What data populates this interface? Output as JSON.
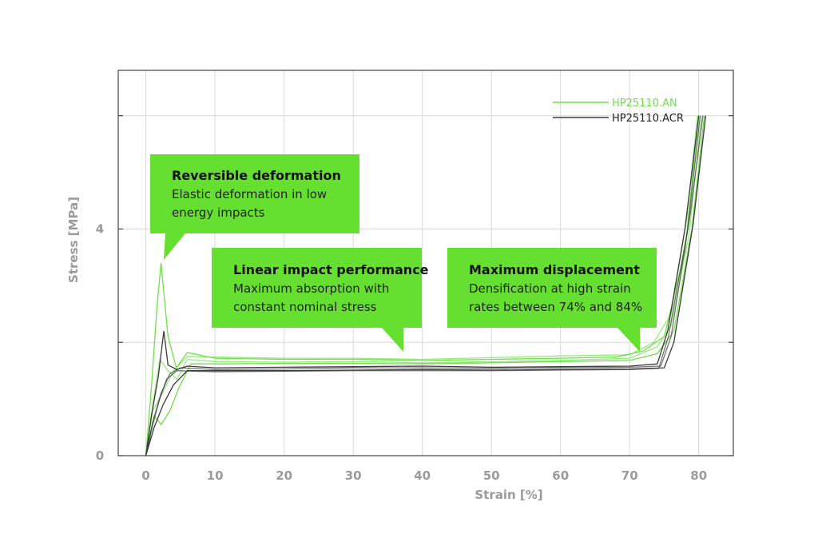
{
  "chart_data": {
    "type": "line",
    "xlabel": "Strain [%]",
    "ylabel": "Stress [MPa]",
    "xlim": [
      -4,
      85
    ],
    "ylim": [
      0,
      6.8
    ],
    "x_ticks": [
      0,
      10,
      20,
      30,
      40,
      50,
      60,
      70,
      80
    ],
    "y_ticks": [
      0,
      4
    ],
    "y_tick_labels": [
      "0",
      "4"
    ],
    "grid": true,
    "legend_position": "top-right",
    "colors": {
      "green": "#6fe04a",
      "black": "#3a3a3a",
      "callout": "#66e030"
    },
    "series": [
      {
        "name": "HP25110.AN",
        "color": "#6fe04a",
        "curves": [
          [
            [
              0,
              0
            ],
            [
              0.8,
              1.2
            ],
            [
              1.6,
              2.6
            ],
            [
              2.2,
              3.4
            ],
            [
              3.2,
              2.1
            ],
            [
              4.4,
              1.55
            ],
            [
              6,
              1.82
            ],
            [
              10,
              1.72
            ],
            [
              20,
              1.7
            ],
            [
              30,
              1.7
            ],
            [
              40,
              1.68
            ],
            [
              50,
              1.7
            ],
            [
              60,
              1.72
            ],
            [
              68,
              1.74
            ],
            [
              72,
              1.85
            ],
            [
              75,
              2.1
            ],
            [
              78,
              3.6
            ],
            [
              80,
              6.0
            ]
          ],
          [
            [
              0,
              0
            ],
            [
              1,
              0.9
            ],
            [
              2,
              1.7
            ],
            [
              3.2,
              1.5
            ],
            [
              4.5,
              1.35
            ],
            [
              6,
              1.7
            ],
            [
              10,
              1.66
            ],
            [
              20,
              1.65
            ],
            [
              30,
              1.66
            ],
            [
              40,
              1.64
            ],
            [
              50,
              1.66
            ],
            [
              60,
              1.68
            ],
            [
              70,
              1.72
            ],
            [
              74,
              1.92
            ],
            [
              76,
              2.3
            ],
            [
              78.6,
              3.9
            ],
            [
              80.4,
              6.0
            ]
          ],
          [
            [
              0,
              0
            ],
            [
              1.2,
              0.7
            ],
            [
              2.2,
              0.55
            ],
            [
              3.5,
              0.8
            ],
            [
              4.8,
              1.2
            ],
            [
              6.5,
              1.62
            ],
            [
              10,
              1.62
            ],
            [
              20,
              1.63
            ],
            [
              30,
              1.63
            ],
            [
              40,
              1.62
            ],
            [
              50,
              1.64
            ],
            [
              60,
              1.66
            ],
            [
              70,
              1.68
            ],
            [
              74,
              1.8
            ],
            [
              76.4,
              2.2
            ],
            [
              79,
              4.0
            ],
            [
              80.8,
              6.0
            ]
          ],
          [
            [
              0,
              0
            ],
            [
              1,
              0.8
            ],
            [
              2.4,
              1.1
            ],
            [
              4,
              1.5
            ],
            [
              6,
              1.75
            ],
            [
              10,
              1.74
            ],
            [
              20,
              1.72
            ],
            [
              30,
              1.72
            ],
            [
              40,
              1.7
            ],
            [
              50,
              1.73
            ],
            [
              60,
              1.76
            ],
            [
              70,
              1.78
            ],
            [
              73.5,
              2.0
            ],
            [
              76,
              2.5
            ],
            [
              78.3,
              4.2
            ],
            [
              79.8,
              6.0
            ]
          ]
        ]
      },
      {
        "name": "HP25110.ACR",
        "color": "#3a3a3a",
        "curves": [
          [
            [
              0,
              0
            ],
            [
              0.8,
              0.7
            ],
            [
              1.8,
              1.4
            ],
            [
              2.6,
              2.2
            ],
            [
              3.2,
              1.6
            ],
            [
              4.5,
              1.52
            ],
            [
              6,
              1.58
            ],
            [
              10,
              1.55
            ],
            [
              20,
              1.56
            ],
            [
              30,
              1.57
            ],
            [
              40,
              1.58
            ],
            [
              50,
              1.56
            ],
            [
              60,
              1.57
            ],
            [
              70,
              1.58
            ],
            [
              74,
              1.62
            ],
            [
              75.5,
              2.2
            ],
            [
              78,
              4.0
            ],
            [
              80,
              6.0
            ]
          ],
          [
            [
              0,
              0
            ],
            [
              1,
              0.6
            ],
            [
              2.2,
              1.1
            ],
            [
              3.5,
              1.45
            ],
            [
              5,
              1.55
            ],
            [
              10,
              1.52
            ],
            [
              20,
              1.53
            ],
            [
              30,
              1.55
            ],
            [
              40,
              1.55
            ],
            [
              50,
              1.54
            ],
            [
              60,
              1.55
            ],
            [
              70,
              1.56
            ],
            [
              74.5,
              1.58
            ],
            [
              76,
              2.1
            ],
            [
              78.8,
              4.3
            ],
            [
              80.6,
              6.0
            ]
          ],
          [
            [
              0,
              0
            ],
            [
              1.2,
              0.5
            ],
            [
              2.5,
              0.9
            ],
            [
              4,
              1.25
            ],
            [
              6,
              1.5
            ],
            [
              10,
              1.5
            ],
            [
              20,
              1.5
            ],
            [
              30,
              1.51
            ],
            [
              40,
              1.52
            ],
            [
              50,
              1.51
            ],
            [
              60,
              1.52
            ],
            [
              70,
              1.53
            ],
            [
              75,
              1.55
            ],
            [
              76.4,
              2.0
            ],
            [
              79.2,
              4.1
            ],
            [
              81,
              6.0
            ]
          ],
          [
            [
              0,
              0
            ],
            [
              1,
              0.55
            ],
            [
              2,
              1.0
            ],
            [
              3,
              1.35
            ],
            [
              4.5,
              1.5
            ],
            [
              10,
              1.48
            ],
            [
              20,
              1.49
            ],
            [
              30,
              1.5
            ],
            [
              40,
              1.5
            ],
            [
              50,
              1.5
            ],
            [
              60,
              1.51
            ],
            [
              70,
              1.52
            ],
            [
              74.2,
              1.54
            ],
            [
              75.6,
              2.1
            ],
            [
              78.4,
              4.0
            ],
            [
              80.2,
              6.0
            ]
          ]
        ]
      }
    ]
  },
  "callouts": [
    {
      "title": "Reversible deformation",
      "lines": [
        "Elastic deformation in low",
        "energy impacts"
      ]
    },
    {
      "title": "Linear impact performance",
      "lines": [
        "Maximum absorption with",
        "constant nominal stress"
      ]
    },
    {
      "title": "Maximum displacement",
      "lines": [
        "Densification at high strain",
        "rates between 74% and 84%"
      ]
    }
  ]
}
